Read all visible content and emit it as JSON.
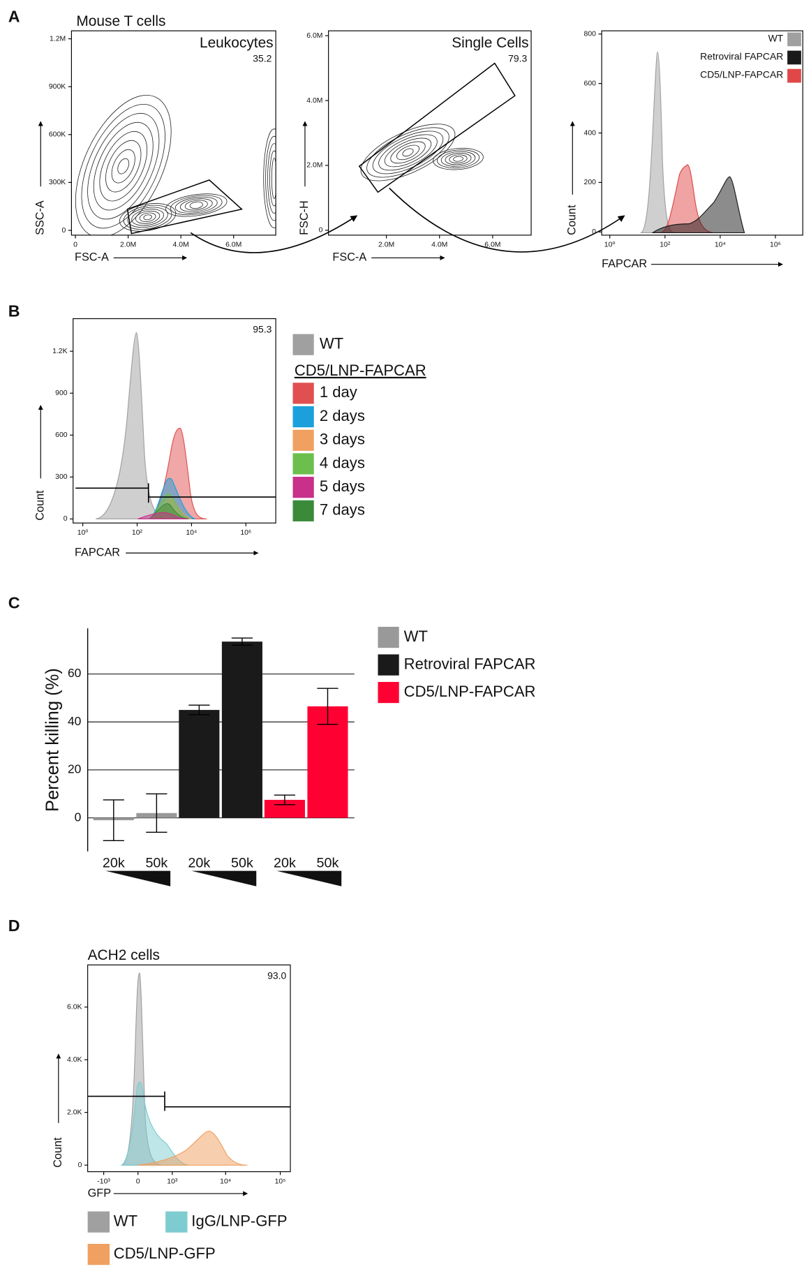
{
  "panel_labels": [
    "A",
    "B",
    "C",
    "D"
  ],
  "chart_data": [
    {
      "type": "contour",
      "title": "Mouse T cells",
      "gate": {
        "name": "Leukocytes",
        "value": 35.2
      },
      "xlabel": "FSC-A",
      "ylabel": "SSC-A",
      "xlim": [
        -150000,
        7600000
      ],
      "ylim": [
        -30000,
        1250000
      ],
      "xticks": [
        0,
        {
          "value": 2000000,
          "label": "2.0M"
        },
        {
          "value": 4000000,
          "label": "4.0M"
        },
        {
          "value": 6000000,
          "label": "6.0M"
        }
      ],
      "yticks": [
        0,
        {
          "value": 300000,
          "label": "300K"
        },
        {
          "value": 600000,
          "label": "600K"
        },
        {
          "value": 900000,
          "label": "900K"
        },
        {
          "value": 1200000,
          "label": "1.2M"
        }
      ]
    },
    {
      "type": "contour",
      "gate": {
        "name": "Single Cells",
        "value": 79.3
      },
      "xlabel": "FSC-A",
      "ylabel": "FSC-H",
      "xlim": [
        -180000,
        7450000
      ],
      "ylim": [
        -150000,
        6150000
      ],
      "xticks": [
        {
          "value": 2000000,
          "label": "2.0M"
        },
        {
          "value": 4000000,
          "label": "4.0M"
        },
        {
          "value": 6000000,
          "label": "6.0M"
        }
      ],
      "yticks": [
        0,
        {
          "value": 2000000,
          "label": "2.0M"
        },
        {
          "value": 4000000,
          "label": "4.0M"
        },
        {
          "value": 6000000,
          "label": "6.0M"
        }
      ]
    },
    {
      "type": "density",
      "xscale": "log",
      "xlabel": "FAPCAR",
      "ylabel": "Count",
      "xlim": [
        0.51,
        9800000
      ],
      "ylim": [
        -13,
        813
      ],
      "xticks": [
        {
          "value": 1,
          "label": "10⁰"
        },
        {
          "value": 100,
          "label": "10²"
        },
        {
          "value": 10000,
          "label": "10⁴"
        },
        {
          "value": 1000000,
          "label": "10⁶"
        }
      ],
      "yticks": [
        0,
        200,
        400,
        600,
        800
      ],
      "series": [
        {
          "name": "WT",
          "color": "#a0a0a0"
        },
        {
          "name": "Retroviral FAPCAR",
          "color": "#1a1a1a"
        },
        {
          "name": "CD5/LNP-FAPCAR",
          "color": "#e04848"
        }
      ]
    },
    {
      "type": "density",
      "xscale": "log",
      "xlabel": "FAPCAR",
      "ylabel": "Count",
      "gate": {
        "value": 95.3
      },
      "xlim": [
        0.44,
        12600000
      ],
      "ylim": [
        -29,
        1433
      ],
      "xticks": [
        {
          "value": 1,
          "label": "10⁰"
        },
        {
          "value": 100,
          "label": "10²"
        },
        {
          "value": 10000,
          "label": "10⁴"
        },
        {
          "value": 1000000,
          "label": "10⁶"
        }
      ],
      "yticks": [
        0,
        300,
        600,
        900,
        {
          "value": 1200,
          "label": "1.2K"
        }
      ],
      "legend_title": "CD5/LNP-FAPCAR",
      "series": [
        {
          "name": "WT",
          "color": "#a0a0a0"
        },
        {
          "name": "1 day",
          "color": "#e05050"
        },
        {
          "name": "2 days",
          "color": "#1ba0dc"
        },
        {
          "name": "3 days",
          "color": "#f0a060"
        },
        {
          "name": "4 days",
          "color": "#6cbf4c"
        },
        {
          "name": "5 days",
          "color": "#c8308a"
        },
        {
          "name": "7 days",
          "color": "#3a8a3a"
        }
      ]
    },
    {
      "type": "bar",
      "ylabel": "Percent killing (%)",
      "categories": [
        "20k",
        "50k"
      ],
      "ylim": [
        -14,
        79
      ],
      "yticks": [
        0,
        20,
        40,
        60
      ],
      "grid": true,
      "series": [
        {
          "name": "WT",
          "color": "#999999",
          "values": [
            -1,
            2
          ],
          "errors": [
            8.5,
            8
          ]
        },
        {
          "name": "Retroviral FAPCAR",
          "color": "#1a1a1a",
          "values": [
            45,
            73.5
          ],
          "errors": [
            2,
            1.5
          ]
        },
        {
          "name": "CD5/LNP-FAPCAR",
          "color": "#ff0033",
          "values": [
            7.5,
            46.5
          ],
          "errors": [
            2,
            7.5
          ]
        }
      ]
    },
    {
      "type": "density",
      "xscale": "biexponential",
      "title": "ACH2 cells",
      "xlabel": "GFP",
      "ylabel": "Count",
      "gate": {
        "value": {
          "value": 93,
          "label": "93.0"
        }
      },
      "xlim": [
        -2050,
        153000
      ],
      "ylim": [
        -250,
        7600
      ],
      "xticks": [
        {
          "value": -1000,
          "label": "-10³"
        },
        0,
        {
          "value": 1000,
          "label": "10³"
        },
        {
          "value": 10000,
          "label": "10⁴"
        },
        {
          "value": 100000,
          "label": "10⁵"
        }
      ],
      "yticks": [
        0,
        {
          "value": 2000,
          "label": "2.0K"
        },
        {
          "value": 4000,
          "label": "4.0K"
        },
        {
          "value": 6000,
          "label": "6.0K"
        }
      ],
      "series": [
        {
          "name": "WT",
          "color": "#a0a0a0"
        },
        {
          "name": "IgG/LNP-GFP",
          "color": "#7ecbd0"
        },
        {
          "name": "CD5/LNP-GFP",
          "color": "#f0a060"
        }
      ]
    }
  ]
}
